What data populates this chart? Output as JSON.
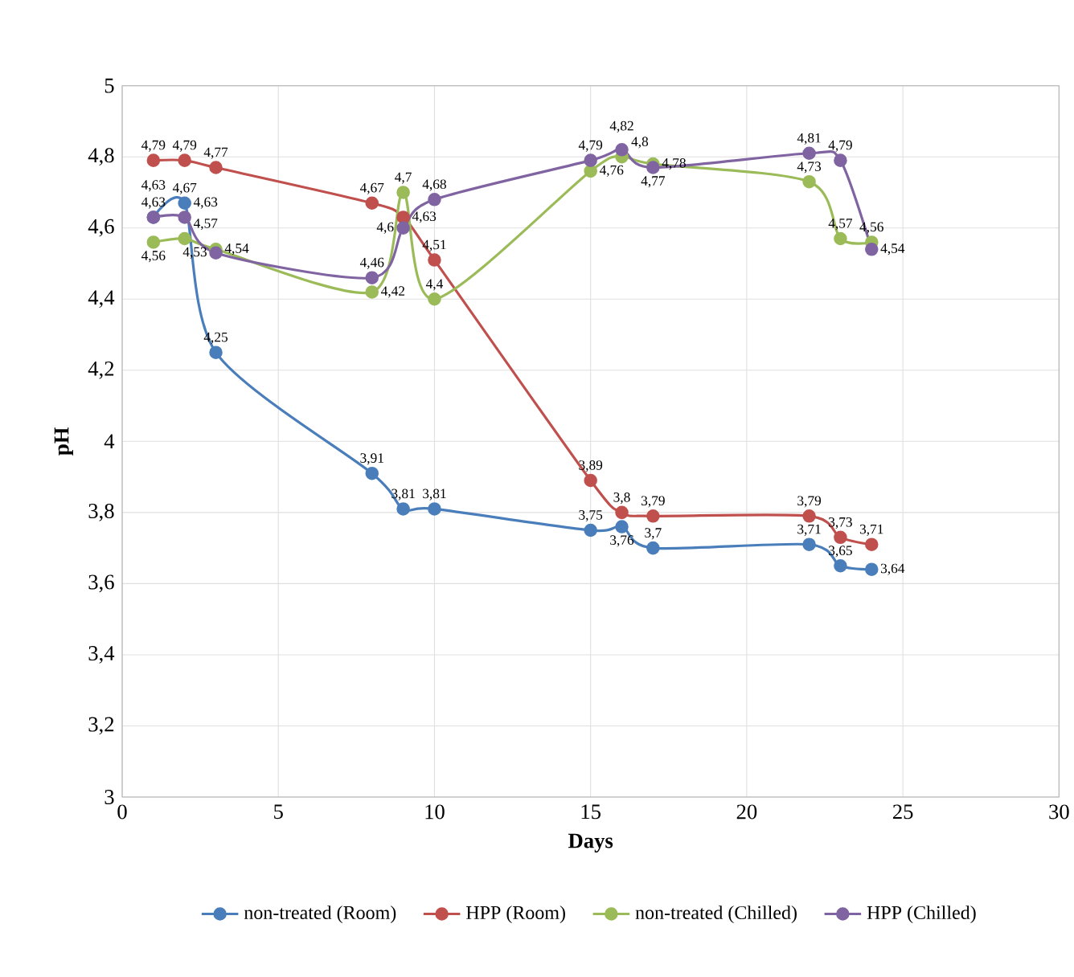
{
  "chart_data": {
    "type": "line",
    "xlabel": "Days",
    "ylabel": "pH",
    "x": [
      1,
      2,
      3,
      8,
      9,
      10,
      15,
      16,
      17,
      22,
      23,
      24
    ],
    "series": [
      {
        "name": "non-treated (Room)",
        "color": "#4a7ebb",
        "values": [
          4.63,
          4.67,
          4.25,
          3.91,
          3.81,
          3.81,
          3.75,
          3.76,
          3.7,
          3.71,
          3.65,
          3.64
        ],
        "value_labels": [
          "4,63",
          "4,67",
          "4,25",
          "3,91",
          "3,81",
          "3,81",
          "3,75",
          "3,76",
          "3,7",
          "3,71",
          "3,65",
          "3,64"
        ]
      },
      {
        "name": "HPP (Room)",
        "color": "#c0504d",
        "values": [
          4.79,
          4.79,
          4.77,
          4.67,
          4.63,
          4.51,
          3.89,
          3.8,
          3.79,
          3.79,
          3.73,
          3.71
        ],
        "value_labels": [
          "4,79",
          "4,79",
          "4,77",
          "4,67",
          "4,63",
          "4,51",
          "3,89",
          "3,8",
          "3,79",
          "3,79",
          "3,73",
          "3,71"
        ]
      },
      {
        "name": "non-treated (Chilled)",
        "color": "#9bbb59",
        "values": [
          4.56,
          4.57,
          4.54,
          4.42,
          4.7,
          4.4,
          4.76,
          4.8,
          4.78,
          4.73,
          4.57,
          4.56
        ],
        "value_labels": [
          "4,56",
          "4,57",
          "4,54",
          "4,42",
          "4,7",
          "4,4",
          "4,76",
          "4,8",
          "4,78",
          "4,73",
          "4,57",
          "4,56"
        ]
      },
      {
        "name": "HPP (Chilled)",
        "color": "#8064a2",
        "values": [
          4.63,
          4.63,
          4.53,
          4.46,
          4.6,
          4.68,
          4.79,
          4.82,
          4.77,
          4.81,
          4.79,
          4.54
        ],
        "value_labels": [
          "4,63",
          "4,63",
          "4,53",
          "4,46",
          "4,6",
          "4,68",
          "4,79",
          "4,82",
          "4,77",
          "4,81",
          "4,79",
          "4,54"
        ]
      }
    ],
    "xlim": [
      0,
      30
    ],
    "xticks": [
      0,
      5,
      10,
      15,
      20,
      25,
      30
    ],
    "ylim": [
      3,
      5
    ],
    "yticks": [
      {
        "value": 3,
        "label": "3"
      },
      {
        "value": 3.2,
        "label": "3,2"
      },
      {
        "value": 3.4,
        "label": "3,4"
      },
      {
        "value": 3.6,
        "label": "3,6"
      },
      {
        "value": 3.8,
        "label": "3,8"
      },
      {
        "value": 4,
        "label": "4"
      },
      {
        "value": 4.2,
        "label": "4,2"
      },
      {
        "value": 4.4,
        "label": "4,4"
      },
      {
        "value": 4.6,
        "label": "4,6"
      },
      {
        "value": 4.8,
        "label": "4,8"
      },
      {
        "value": 5,
        "label": "5"
      }
    ],
    "grid": true,
    "legend": "bottom",
    "marker": "circle",
    "line_style": "solid"
  }
}
